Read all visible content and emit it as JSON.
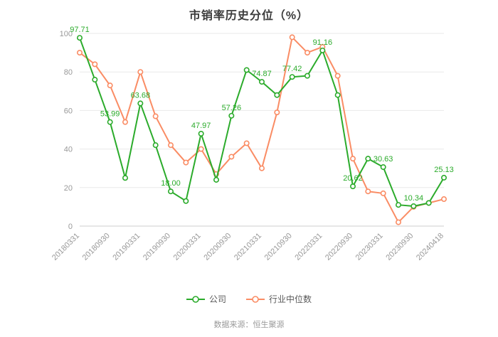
{
  "title": "市销率历史分位（%）",
  "source": "数据来源：恒生聚源",
  "colors": {
    "company": "#2bab2b",
    "industry": "#fa8c64",
    "grid": "#e9e9e9",
    "axis_line": "#cccccc",
    "axis_label": "#999999",
    "title": "#3c3c3c"
  },
  "chart_data": {
    "type": "line",
    "title": "市销率历史分位（%）",
    "ylim": [
      0,
      100
    ],
    "yticks": [
      0,
      20,
      40,
      60,
      80,
      100
    ],
    "grid": true,
    "legend_position": "bottom",
    "x": [
      "20180331",
      "20180630",
      "20180930",
      "20181231",
      "20190331",
      "20190630",
      "20190930",
      "20191231",
      "20200331",
      "20200630",
      "20200930",
      "20201231",
      "20210331",
      "20210630",
      "20210930",
      "20211231",
      "20220331",
      "20220630",
      "20220930",
      "20221231",
      "20230331",
      "20230630",
      "20230930",
      "20231231",
      "20240418"
    ],
    "x_ticks": [
      {
        "index": 0,
        "label": "20180331"
      },
      {
        "index": 2,
        "label": "20180930"
      },
      {
        "index": 4,
        "label": "20190331"
      },
      {
        "index": 6,
        "label": "20190930"
      },
      {
        "index": 8,
        "label": "20200331"
      },
      {
        "index": 10,
        "label": "20200930"
      },
      {
        "index": 12,
        "label": "20210331"
      },
      {
        "index": 14,
        "label": "20210930"
      },
      {
        "index": 16,
        "label": "20220331"
      },
      {
        "index": 18,
        "label": "20220930"
      },
      {
        "index": 20,
        "label": "20230331"
      },
      {
        "index": 22,
        "label": "20230930"
      },
      {
        "index": 24,
        "label": "20240418"
      }
    ],
    "series": [
      {
        "name": "行业中位数",
        "color": "#fa8c64",
        "values": [
          90,
          84,
          73,
          54,
          80,
          57,
          42,
          33,
          40,
          27,
          36,
          43,
          30,
          59,
          98,
          90,
          93,
          78,
          35,
          18,
          17,
          2,
          10,
          12,
          14
        ],
        "point_labels": {}
      },
      {
        "name": "公司",
        "color": "#2bab2b",
        "values": [
          97.71,
          76,
          53.99,
          25,
          63.68,
          42,
          18,
          13,
          47.97,
          24,
          57.26,
          81,
          74.87,
          68,
          77.42,
          78,
          91.16,
          68,
          20.62,
          35,
          30.63,
          11,
          10.34,
          12,
          25.13
        ],
        "point_labels": {
          "0": "97.71",
          "2": "53.99",
          "4": "63.68",
          "6": "18.00",
          "8": "47.97",
          "10": "57.26",
          "12": "74.87",
          "14": "77.42",
          "16": "91.16",
          "18": "20.62",
          "20": "30.63",
          "22": "10.34",
          "24": "25.13"
        }
      }
    ]
  },
  "legend": {
    "items": [
      {
        "label": "公司",
        "color": "#2bab2b"
      },
      {
        "label": "行业中位数",
        "color": "#fa8c64"
      }
    ]
  }
}
